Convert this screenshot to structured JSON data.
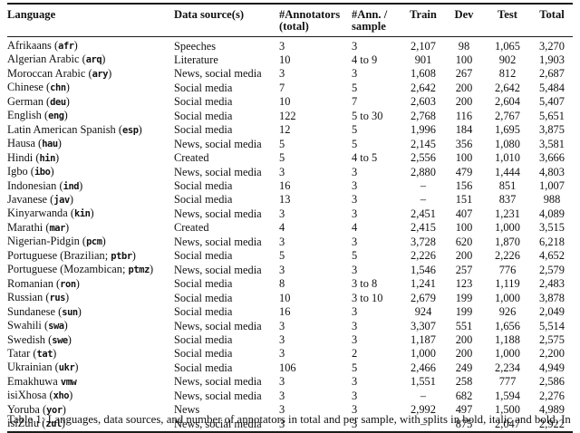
{
  "table": {
    "columns": [
      {
        "id": "language",
        "line1": "Language",
        "line2": ""
      },
      {
        "id": "source",
        "line1": "Data source(s)",
        "line2": ""
      },
      {
        "id": "ann_total",
        "line1": "#Annotators",
        "line2": "(total)"
      },
      {
        "id": "ann_sample",
        "line1": "#Ann. /",
        "line2": "sample"
      },
      {
        "id": "train",
        "line1": "Train",
        "line2": ""
      },
      {
        "id": "dev",
        "line1": "Dev",
        "line2": ""
      },
      {
        "id": "test",
        "line1": "Test",
        "line2": ""
      },
      {
        "id": "total",
        "line1": "Total",
        "line2": ""
      }
    ],
    "rows": [
      {
        "pre": "Afrikaans (",
        "code": "afr",
        "post": ")",
        "source": "Speeches",
        "ann_total": "3",
        "ann_sample": "3",
        "train": "2,107",
        "dev": "98",
        "test": "1,065",
        "total": "3,270"
      },
      {
        "pre": "Algerian Arabic (",
        "code": "arq",
        "post": ")",
        "source": "Literature",
        "ann_total": "10",
        "ann_sample": "4 to 9",
        "train": "901",
        "dev": "100",
        "test": "902",
        "total": "1,903"
      },
      {
        "pre": "Moroccan Arabic (",
        "code": "ary",
        "post": ")",
        "source": "News, social media",
        "ann_total": "3",
        "ann_sample": "3",
        "train": "1,608",
        "dev": "267",
        "test": "812",
        "total": "2,687"
      },
      {
        "pre": "Chinese (",
        "code": "chn",
        "post": ")",
        "source": "Social media",
        "ann_total": "7",
        "ann_sample": "5",
        "train": "2,642",
        "dev": "200",
        "test": "2,642",
        "total": "5,484"
      },
      {
        "pre": "German (",
        "code": "deu",
        "post": ")",
        "source": "Social media",
        "ann_total": "10",
        "ann_sample": "7",
        "train": "2,603",
        "dev": "200",
        "test": "2,604",
        "total": "5,407"
      },
      {
        "pre": "English (",
        "code": "eng",
        "post": ")",
        "source": "Social media",
        "ann_total": "122",
        "ann_sample": "5 to 30",
        "train": "2,768",
        "dev": "116",
        "test": "2,767",
        "total": "5,651"
      },
      {
        "pre": "Latin American Spanish (",
        "code": "esp",
        "post": ")",
        "source": "Social media",
        "ann_total": "12",
        "ann_sample": "5",
        "train": "1,996",
        "dev": "184",
        "test": "1,695",
        "total": "3,875"
      },
      {
        "pre": "Hausa (",
        "code": "hau",
        "post": ")",
        "source": "News, social media",
        "ann_total": "5",
        "ann_sample": "5",
        "train": "2,145",
        "dev": "356",
        "test": "1,080",
        "total": "3,581"
      },
      {
        "pre": "Hindi (",
        "code": "hin",
        "post": ")",
        "source": "Created",
        "ann_total": "5",
        "ann_sample": "4 to 5",
        "train": "2,556",
        "dev": "100",
        "test": "1,010",
        "total": "3,666"
      },
      {
        "pre": "Igbo (",
        "code": "ibo",
        "post": ")",
        "source": "News, social media",
        "ann_total": "3",
        "ann_sample": "3",
        "train": "2,880",
        "dev": "479",
        "test": "1,444",
        "total": "4,803"
      },
      {
        "pre": "Indonesian (",
        "code": "ind",
        "post": ")",
        "source": "Social media",
        "ann_total": "16",
        "ann_sample": "3",
        "train": "–",
        "dev": "156",
        "test": "851",
        "total": "1,007"
      },
      {
        "pre": "Javanese (",
        "code": "jav",
        "post": ")",
        "source": "Social media",
        "ann_total": "13",
        "ann_sample": "3",
        "train": "–",
        "dev": "151",
        "test": "837",
        "total": "988"
      },
      {
        "pre": "Kinyarwanda (",
        "code": "kin",
        "post": ")",
        "source": "News, social media",
        "ann_total": "3",
        "ann_sample": "3",
        "train": "2,451",
        "dev": "407",
        "test": "1,231",
        "total": "4,089"
      },
      {
        "pre": "Marathi (",
        "code": "mar",
        "post": ")",
        "source": "Created",
        "ann_total": "4",
        "ann_sample": "4",
        "train": "2,415",
        "dev": "100",
        "test": "1,000",
        "total": "3,515"
      },
      {
        "pre": "Nigerian-Pidgin (",
        "code": "pcm",
        "post": ")",
        "source": "News, social media",
        "ann_total": "3",
        "ann_sample": "3",
        "train": "3,728",
        "dev": "620",
        "test": "1,870",
        "total": "6,218"
      },
      {
        "pre": "Portuguese (Brazilian; ",
        "code": "ptbr",
        "post": ")",
        "source": "Social media",
        "ann_total": "5",
        "ann_sample": "5",
        "train": "2,226",
        "dev": "200",
        "test": "2,226",
        "total": "4,652"
      },
      {
        "pre": "Portuguese (Mozambican; ",
        "code": "ptmz",
        "post": ")",
        "source": "News, social media",
        "ann_total": "3",
        "ann_sample": "3",
        "train": "1,546",
        "dev": "257",
        "test": "776",
        "total": "2,579"
      },
      {
        "pre": "Romanian (",
        "code": "ron",
        "post": ")",
        "source": "Social media",
        "ann_total": "8",
        "ann_sample": "3 to 8",
        "train": "1,241",
        "dev": "123",
        "test": "1,119",
        "total": "2,483"
      },
      {
        "pre": "Russian (",
        "code": "rus",
        "post": ")",
        "source": "Social media",
        "ann_total": "10",
        "ann_sample": "3 to 10",
        "train": "2,679",
        "dev": "199",
        "test": "1,000",
        "total": "3,878"
      },
      {
        "pre": "Sundanese (",
        "code": "sun",
        "post": ")",
        "source": "Social media",
        "ann_total": "16",
        "ann_sample": "3",
        "train": "924",
        "dev": "199",
        "test": "926",
        "total": "2,049"
      },
      {
        "pre": "Swahili (",
        "code": "swa",
        "post": ")",
        "source": "News, social media",
        "ann_total": "3",
        "ann_sample": "3",
        "train": "3,307",
        "dev": "551",
        "test": "1,656",
        "total": "5,514"
      },
      {
        "pre": "Swedish (",
        "code": "swe",
        "post": ")",
        "source": "Social media",
        "ann_total": "3",
        "ann_sample": "3",
        "train": "1,187",
        "dev": "200",
        "test": "1,188",
        "total": "2,575"
      },
      {
        "pre": "Tatar (",
        "code": "tat",
        "post": ")",
        "source": "Social media",
        "ann_total": "3",
        "ann_sample": "2",
        "train": "1,000",
        "dev": "200",
        "test": "1,000",
        "total": "2,200"
      },
      {
        "pre": "Ukrainian (",
        "code": "ukr",
        "post": ")",
        "source": "Social media",
        "ann_total": "106",
        "ann_sample": "5",
        "train": "2,466",
        "dev": "249",
        "test": "2,234",
        "total": "4,949"
      },
      {
        "pre": "Emakhuwa ",
        "code": "vmw",
        "post": "",
        "source": "News, social media",
        "ann_total": "3",
        "ann_sample": "3",
        "train": "1,551",
        "dev": "258",
        "test": "777",
        "total": "2,586"
      },
      {
        "pre": "isiXhosa (",
        "code": "xho",
        "post": ")",
        "source": "News, social media",
        "ann_total": "3",
        "ann_sample": "3",
        "train": "–",
        "dev": "682",
        "test": "1,594",
        "total": "2,276"
      },
      {
        "pre": "Yoruba (",
        "code": "yor",
        "post": ")",
        "source": "News",
        "ann_total": "3",
        "ann_sample": "3",
        "train": "2,992",
        "dev": "497",
        "test": "1,500",
        "total": "4,989"
      },
      {
        "pre": "isiZulu (",
        "code": "zul",
        "post": ")",
        "source": "News, social media",
        "ann_total": "3",
        "ann_sample": "3",
        "train": "–",
        "dev": "875",
        "test": "2,047",
        "total": "2,922"
      }
    ]
  },
  "caption": {
    "clipped_text": "Table 1: Languages, data sources, and number of annotators in total and per sample, with splits in bold, italic and bold. In"
  }
}
